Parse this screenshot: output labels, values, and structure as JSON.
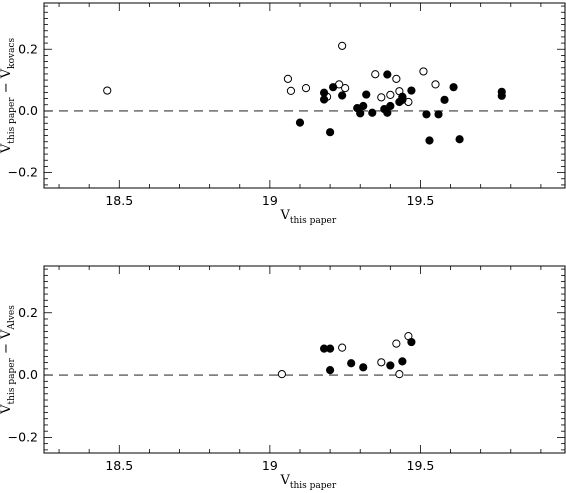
{
  "chart_data": [
    {
      "type": "scatter",
      "xlim": [
        18.25,
        19.98
      ],
      "ylim": [
        -0.25,
        0.35
      ],
      "xticks": [
        "18.5",
        "19",
        "19.5"
      ],
      "yticks": [
        "−0.2",
        "0.0",
        "0.2"
      ],
      "xlabel": {
        "main": "V",
        "sub": "this paper"
      },
      "ylabel": {
        "main1": "V",
        "sub1": "this paper",
        "dash": "−",
        "main2": "V",
        "sub2": "kovacs"
      },
      "reference_line_y": 0.0,
      "series": [
        {
          "marker": "open-circle",
          "points": [
            [
              18.46,
              0.066
            ],
            [
              19.06,
              0.104
            ],
            [
              19.07,
              0.065
            ],
            [
              19.12,
              0.074
            ],
            [
              19.19,
              0.046
            ],
            [
              19.23,
              0.086
            ],
            [
              19.24,
              0.211
            ],
            [
              19.25,
              0.074
            ],
            [
              19.35,
              0.119
            ],
            [
              19.37,
              0.044
            ],
            [
              19.4,
              0.052
            ],
            [
              19.42,
              0.104
            ],
            [
              19.43,
              0.064
            ],
            [
              19.44,
              0.044
            ],
            [
              19.46,
              0.029
            ],
            [
              19.51,
              0.128
            ],
            [
              19.55,
              0.086
            ]
          ]
        },
        {
          "marker": "filled-circle",
          "points": [
            [
              19.1,
              -0.038
            ],
            [
              19.18,
              0.059
            ],
            [
              19.18,
              0.037
            ],
            [
              19.2,
              -0.069
            ],
            [
              19.21,
              0.077
            ],
            [
              19.24,
              0.05
            ],
            [
              19.29,
              0.009
            ],
            [
              19.3,
              -0.008
            ],
            [
              19.31,
              0.016
            ],
            [
              19.32,
              0.053
            ],
            [
              19.34,
              -0.006
            ],
            [
              19.38,
              0.006
            ],
            [
              19.39,
              0.118
            ],
            [
              19.39,
              -0.006
            ],
            [
              19.4,
              0.016
            ],
            [
              19.43,
              0.029
            ],
            [
              19.44,
              0.036
            ],
            [
              19.44,
              0.046
            ],
            [
              19.47,
              0.066
            ],
            [
              19.52,
              -0.011
            ],
            [
              19.53,
              -0.096
            ],
            [
              19.56,
              -0.011
            ],
            [
              19.58,
              0.036
            ],
            [
              19.61,
              0.077
            ],
            [
              19.63,
              -0.092
            ],
            [
              19.77,
              0.049
            ],
            [
              19.77,
              0.062
            ]
          ]
        }
      ]
    },
    {
      "type": "scatter",
      "xlim": [
        18.25,
        19.98
      ],
      "ylim": [
        -0.25,
        0.35
      ],
      "xticks": [
        "18.5",
        "19",
        "19.5"
      ],
      "yticks": [
        "−0.2",
        "0.0",
        "0.2"
      ],
      "xlabel": {
        "main": "V",
        "sub": "this paper"
      },
      "ylabel": {
        "main1": "V",
        "sub1": "this paper",
        "dash": "−",
        "main2": "V",
        "sub2": "Alves"
      },
      "reference_line_y": 0.0,
      "series": [
        {
          "marker": "open-circle",
          "points": [
            [
              19.04,
              0.003
            ],
            [
              19.24,
              0.088
            ],
            [
              19.37,
              0.041
            ],
            [
              19.42,
              0.101
            ],
            [
              19.43,
              0.003
            ],
            [
              19.46,
              0.125
            ]
          ]
        },
        {
          "marker": "filled-circle",
          "points": [
            [
              19.18,
              0.085
            ],
            [
              19.2,
              0.085
            ],
            [
              19.2,
              0.016
            ],
            [
              19.27,
              0.038
            ],
            [
              19.31,
              0.025
            ],
            [
              19.4,
              0.031
            ],
            [
              19.44,
              0.044
            ],
            [
              19.47,
              0.106
            ]
          ]
        }
      ]
    }
  ]
}
